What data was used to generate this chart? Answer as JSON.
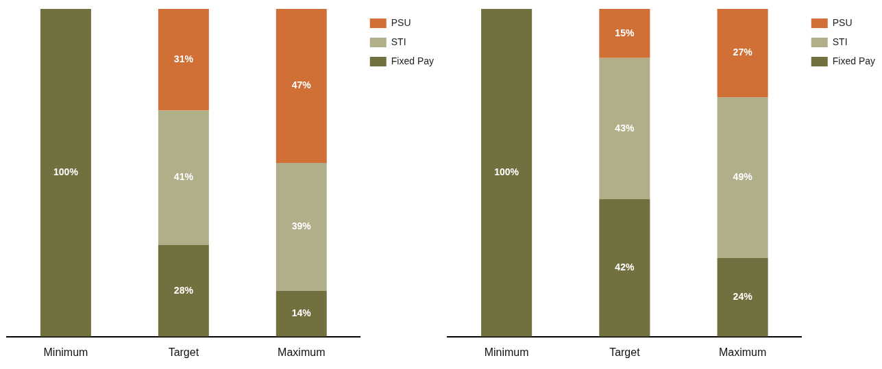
{
  "chart_data": [
    {
      "type": "bar",
      "stacked": true,
      "data_labels": false,
      "legend": "top right",
      "grid": false,
      "categories": [
        "Minimum",
        "Target",
        "Maximum"
      ],
      "series": [
        {
          "name": "Fixed Pay",
          "color": "#737040",
          "values": [
            100,
            28,
            14
          ],
          "value_labels": [
            "100%",
            "28%",
            "14%"
          ]
        },
        {
          "name": "STI",
          "color": "#b1ae8a",
          "values": [
            null,
            41,
            39
          ],
          "value_labels": [
            null,
            "41%",
            "39%"
          ]
        },
        {
          "name": "PSU",
          "color": "#d07036",
          "values": [
            null,
            31,
            47
          ],
          "value_labels": [
            null,
            "31%",
            "47%"
          ]
        }
      ]
    },
    {
      "type": "bar",
      "stacked": true,
      "data_labels": false,
      "legend": "top right",
      "grid": false,
      "categories": [
        "Minimum",
        "Target",
        "Maximum"
      ],
      "series": [
        {
          "name": "Fixed Pay",
          "color": "#737040",
          "values": [
            100,
            42,
            24
          ],
          "value_labels": [
            "100%",
            "42%",
            "24%"
          ]
        },
        {
          "name": "STI",
          "color": "#b1ae8a",
          "values": [
            null,
            43,
            49
          ],
          "value_labels": [
            null,
            "43%",
            "49%"
          ]
        },
        {
          "name": "PSU",
          "color": "#d07036",
          "values": [
            null,
            15,
            27
          ],
          "value_labels": [
            null,
            "15%",
            "27%"
          ]
        }
      ]
    }
  ]
}
